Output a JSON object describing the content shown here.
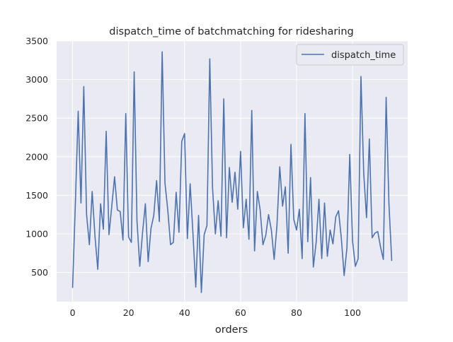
{
  "chart_data": {
    "type": "line",
    "title": "dispatch_time of batchmatching for ridesharing",
    "xlabel": "orders",
    "ylabel": "",
    "xlim": [
      -5.7,
      119.7
    ],
    "ylim": [
      121,
      3500
    ],
    "x_ticks": [
      0,
      20,
      40,
      60,
      80,
      100
    ],
    "y_ticks": [
      500,
      1000,
      1500,
      2000,
      2500,
      3000,
      3500
    ],
    "grid": true,
    "legend_position": "top-right",
    "colors": {
      "background": "#eaeaf2",
      "grid": "#ffffff",
      "series": "#4c72b0"
    },
    "series": [
      {
        "name": "dispatch_time",
        "x": [
          0,
          1,
          2,
          3,
          4,
          5,
          6,
          7,
          8,
          9,
          10,
          11,
          12,
          13,
          14,
          15,
          16,
          17,
          18,
          19,
          20,
          21,
          22,
          23,
          24,
          25,
          26,
          27,
          28,
          29,
          30,
          31,
          32,
          33,
          34,
          35,
          36,
          37,
          38,
          39,
          40,
          41,
          42,
          43,
          44,
          45,
          46,
          47,
          48,
          49,
          50,
          51,
          52,
          53,
          54,
          55,
          56,
          57,
          58,
          59,
          60,
          61,
          62,
          63,
          64,
          65,
          66,
          67,
          68,
          69,
          70,
          71,
          72,
          73,
          74,
          75,
          76,
          77,
          78,
          79,
          80,
          81,
          82,
          83,
          84,
          85,
          86,
          87,
          88,
          89,
          90,
          91,
          92,
          93,
          94,
          95,
          96,
          97,
          98,
          99,
          100,
          101,
          102,
          103,
          104,
          105,
          106,
          107,
          108,
          109,
          110,
          111,
          112,
          113,
          114
        ],
        "values": [
          300,
          1400,
          2590,
          1400,
          2910,
          1250,
          860,
          1550,
          970,
          540,
          1390,
          1060,
          2330,
          990,
          1360,
          1740,
          1310,
          1290,
          920,
          2560,
          960,
          890,
          3100,
          1170,
          580,
          1020,
          1390,
          640,
          1070,
          1240,
          1690,
          1160,
          3360,
          1660,
          1310,
          860,
          890,
          1540,
          1020,
          2200,
          2300,
          940,
          1650,
          1000,
          310,
          1240,
          240,
          990,
          1110,
          3270,
          1590,
          1000,
          1430,
          970,
          2750,
          950,
          1860,
          1410,
          1800,
          1320,
          2070,
          1080,
          1450,
          930,
          2600,
          780,
          1550,
          1310,
          860,
          980,
          1250,
          1050,
          670,
          1110,
          1870,
          1360,
          1610,
          750,
          2160,
          1190,
          1050,
          1320,
          680,
          2560,
          900,
          1730,
          570,
          890,
          1450,
          680,
          1400,
          710,
          1050,
          870,
          1220,
          1300,
          940,
          460,
          820,
          2030,
          910,
          580,
          680,
          3040,
          1780,
          1210,
          2230,
          950,
          1010,
          1030,
          830,
          670,
          2770,
          1390,
          650
        ]
      }
    ]
  }
}
